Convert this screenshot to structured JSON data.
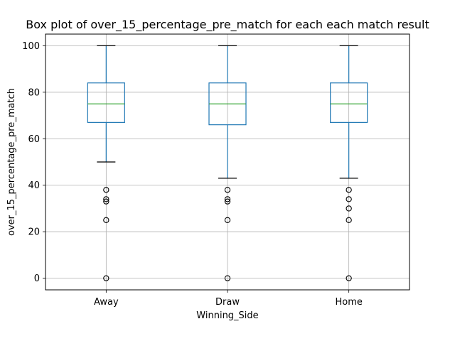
{
  "chart_data": {
    "type": "box",
    "title": "Box plot of over_15_percentage_pre_match for each each match result",
    "xlabel": "Winning_Side",
    "ylabel": "over_15_percentage_pre_match",
    "categories": [
      "Away",
      "Draw",
      "Home"
    ],
    "ylim": [
      -5,
      105
    ],
    "yticks": [
      0,
      20,
      40,
      60,
      80,
      100
    ],
    "grid": true,
    "colors": {
      "box": "#1f77b4",
      "median": "#2ca02c",
      "grid": "#b0b0b0",
      "flier": "#000000"
    },
    "boxes": [
      {
        "category": "Away",
        "q1": 67,
        "median": 75,
        "q3": 84,
        "whisker_low": 50,
        "whisker_high": 100,
        "fliers": [
          38,
          34,
          33,
          25,
          0
        ]
      },
      {
        "category": "Draw",
        "q1": 66,
        "median": 75,
        "q3": 84,
        "whisker_low": 43,
        "whisker_high": 100,
        "fliers": [
          38,
          34,
          33,
          25,
          0
        ]
      },
      {
        "category": "Home",
        "q1": 67,
        "median": 75,
        "q3": 84,
        "whisker_low": 43,
        "whisker_high": 100,
        "fliers": [
          38,
          34,
          30,
          25,
          0
        ]
      }
    ]
  }
}
